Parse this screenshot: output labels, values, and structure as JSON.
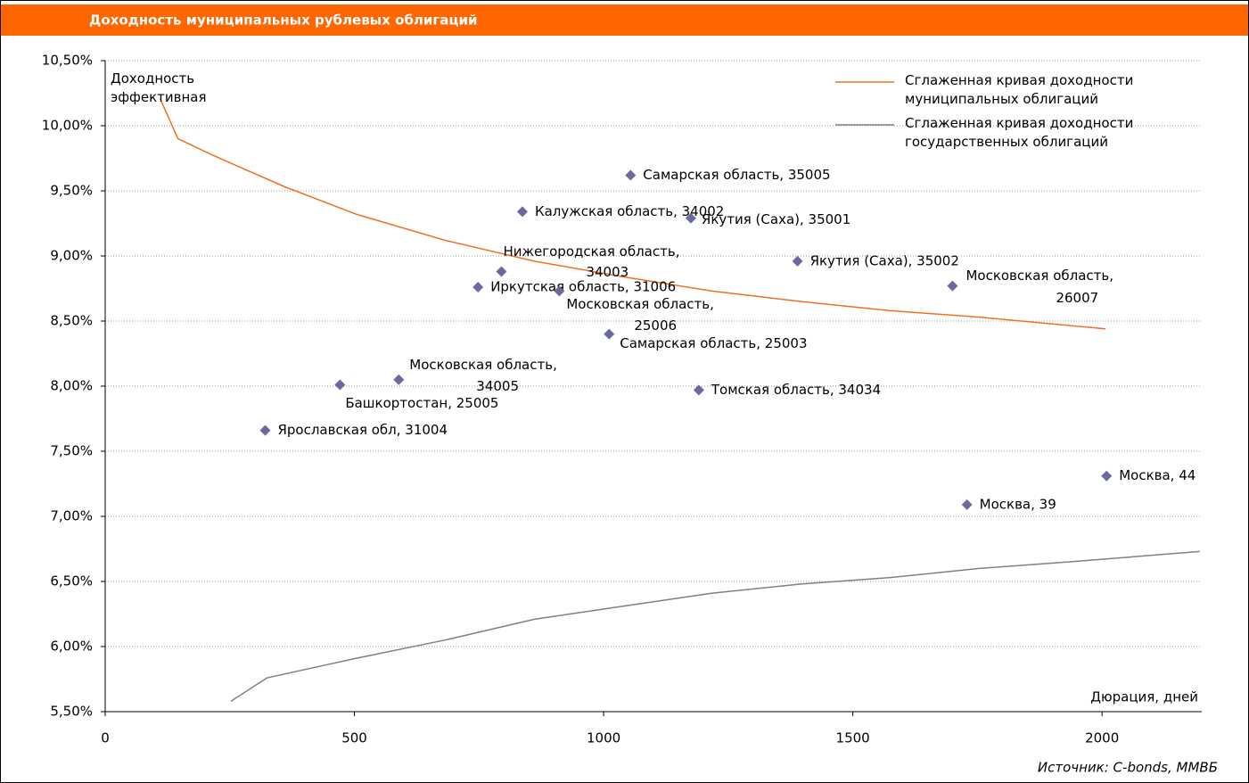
{
  "chart_data": {
    "type": "scatter",
    "title": "Доходность муниципальных рублевых облигаций",
    "ylabel": "Доходность эффективная",
    "xlabel": "Дюрация, дней",
    "source": "Источник: C-bonds, ММВБ",
    "xlim": [
      0,
      2200
    ],
    "xticks": [
      0,
      500,
      1000,
      1500,
      2000
    ],
    "ylim": [
      5.5,
      10.5
    ],
    "yticks": [
      {
        "value": 5.5,
        "label": "5,50%"
      },
      {
        "value": 6,
        "label": "6,00%"
      },
      {
        "value": 6.5,
        "label": "6,50%"
      },
      {
        "value": 7,
        "label": "7,00%"
      },
      {
        "value": 7.5,
        "label": "7,50%"
      },
      {
        "value": 8,
        "label": "8,00%"
      },
      {
        "value": 8.5,
        "label": "8,50%"
      },
      {
        "value": 9,
        "label": "9,00%"
      },
      {
        "value": 9.5,
        "label": "9,50%"
      },
      {
        "value": 10,
        "label": "10,00%"
      },
      {
        "value": 10.5,
        "label": "10,50%"
      }
    ],
    "grid": true,
    "point_color": "#6a6aa0",
    "points": {
      "labels": [
        [
          "Самарская область, 35005"
        ],
        [
          "Калужская область, 34002"
        ],
        [
          "Якутия (Саха), 35001"
        ],
        [
          "Нижегородская область,",
          "34003"
        ],
        [
          "Якутия (Саха), 35002"
        ],
        [
          "Московская область,",
          "26007"
        ],
        [
          "Иркутская область, 31006"
        ],
        [
          "Московская область,",
          "25006"
        ],
        [
          "Самарская область, 25003"
        ],
        [
          "Московская область,",
          "34005"
        ],
        [
          "Башкортостан, 25005"
        ],
        [
          "Томская область, 34034"
        ],
        [
          "Ярославская обл, 31004"
        ],
        [
          "Москва, 44"
        ],
        [
          "Москва, 39"
        ]
      ],
      "x": [
        1054,
        837,
        1175,
        795,
        1389,
        1700,
        748,
        911,
        1011,
        589,
        471,
        1191,
        321,
        2009,
        1729
      ],
      "y": [
        9.62,
        9.34,
        9.29,
        8.88,
        8.96,
        8.77,
        8.76,
        8.73,
        8.4,
        8.05,
        8.01,
        7.97,
        7.66,
        7.31,
        7.09
      ]
    },
    "series": [
      {
        "name": "Сглаженная кривая доходности муниципальных облигаций",
        "color": "#f07020",
        "x": [
          110,
          146,
          218,
          361,
          504,
          682,
          861,
          1039,
          1218,
          1396,
          1575,
          1754,
          2007
        ],
        "values": [
          10.21,
          9.9,
          9.77,
          9.53,
          9.32,
          9.12,
          8.96,
          8.84,
          8.73,
          8.65,
          8.58,
          8.53,
          8.44
        ]
      },
      {
        "name": "Сглаженная кривая доходности государственных облигаций",
        "color": "#808080",
        "x": [
          252,
          325,
          504,
          682,
          861,
          1039,
          1218,
          1396,
          1575,
          1754,
          1932,
          2196
        ],
        "values": [
          5.58,
          5.76,
          5.91,
          6.05,
          6.21,
          6.31,
          6.41,
          6.48,
          6.53,
          6.6,
          6.65,
          6.73
        ]
      }
    ]
  }
}
